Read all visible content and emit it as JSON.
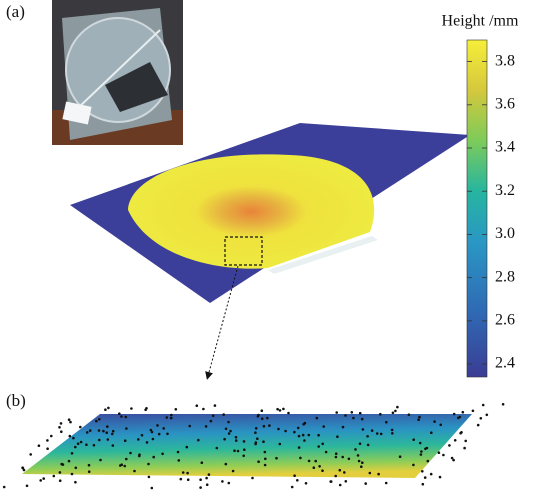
{
  "panels": [
    {
      "label": "(a)"
    },
    {
      "label": "(b)"
    }
  ],
  "colorbar": {
    "title": "Height /mm",
    "lim": [
      2.34,
      3.9
    ],
    "ticks": [
      2.4,
      2.6,
      2.8,
      {
        "value": 3,
        "label": "3.0"
      },
      3.2,
      3.4,
      3.6,
      3.8
    ]
  }
}
